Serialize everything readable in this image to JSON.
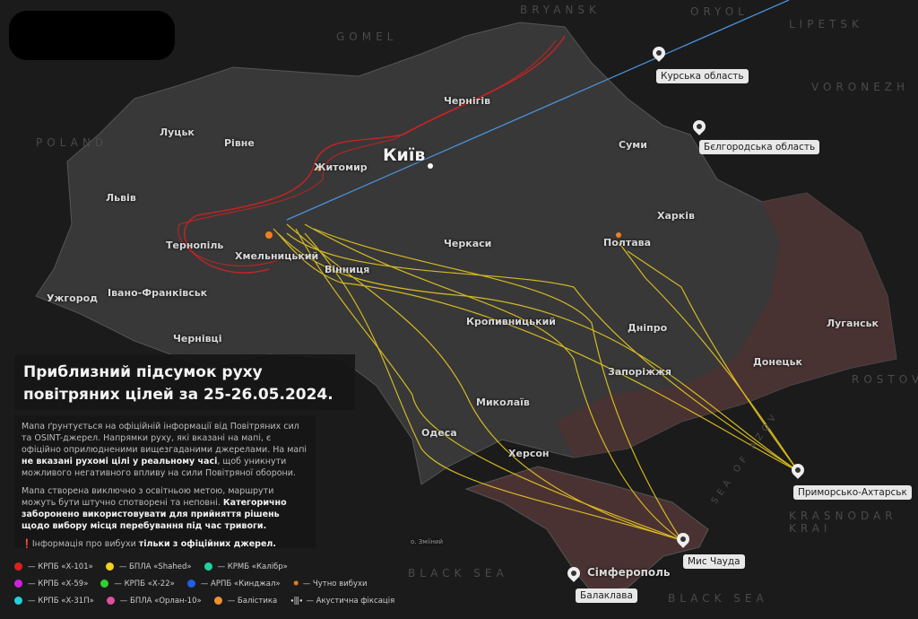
{
  "title": "Приблизний підсумок руху повітряних цілей за 25-26.05.2024.",
  "description": {
    "p1_normal_a": "Мапа ґрунтується на офіційній інформації від Повітряних сил та OSINT-джерел. Напрямки руху, які вказані на мапі, є офіційно оприлюдненими вищезгаданими джерелами. На мапі ",
    "p1_bold": "не вказані рухомі цілі у реальному часі",
    "p1_normal_b": ", щоб уникнути можливого негативного впливу на сили Повітряної оборони.",
    "p2_normal": "Мапа створена виключно з освітньою метою, маршрути можуть бути штучно спотворені та неповні. ",
    "p2_bold": "Категорично заборонено використовувати для прийняття рішень щодо вибору місця перебування під час тривоги.",
    "p3_mark": "❗",
    "p3_normal": "Інформація про вибухи ",
    "p3_bold": "тільки з офіційних джерел."
  },
  "legend": [
    {
      "label": "— КРПБ «Х-101»",
      "color": "#e02020"
    },
    {
      "label": "— БПЛА «Shahed»",
      "color": "#f0d020"
    },
    {
      "label": "— КРМБ «Калібр»",
      "color": "#20d0a0"
    },
    {
      "label": "— КРПБ «Х-59»",
      "color": "#d020e0"
    },
    {
      "label": "— КРПБ «Х-22»",
      "color": "#30d030"
    },
    {
      "label": "— АРПБ «Кинджал»",
      "color": "#2060e0"
    },
    {
      "label": "— Чутно вибухи",
      "icon": "explosion-icon"
    },
    {
      "label": "— КРПБ «Х-31П»",
      "color": "#20d0e0"
    },
    {
      "label": "— БПЛА «Орлан-10»",
      "color": "#e050a0"
    },
    {
      "label": "— Балістика",
      "color": "#f09030"
    },
    {
      "label": "— Акустична фіксація",
      "icon": "acoustic-icon"
    }
  ],
  "cities": {
    "kyiv": "Київ",
    "chernihiv": "Чернігів",
    "zhytomyr": "Житомир",
    "lutsk": "Луцьк",
    "rivne": "Рівне",
    "lviv": "Львів",
    "ternopil": "Тернопіль",
    "khmelnytskyi": "Хмельницький",
    "vinnytsia": "Вінниця",
    "uzhhorod": "Ужгород",
    "ivano": "Івано-Франківськ",
    "chernivtsi": "Чернівці",
    "cherkasy": "Черкаси",
    "sumy": "Суми",
    "kharkiv": "Харків",
    "poltava": "Полтава",
    "kropyvnytskyi": "Кропивницький",
    "dnipro": "Дніпро",
    "zaporizhzhia": "Запоріжжя",
    "luhansk": "Луганськ",
    "donetsk": "Донецьк",
    "mykolaiv": "Миколаїв",
    "odesa": "Одеса",
    "kherson": "Херсон",
    "simferopol": "Сімферополь",
    "zmiinyi": "о. Зміїний"
  },
  "regions": {
    "poland": "POLAND",
    "gomel": "GOMEL",
    "bryansk": "BRYANSK",
    "oryol": "ORYOL",
    "lipetsk": "LIPETSK",
    "voronezh": "VORONEZH",
    "rostov": "ROSTOV",
    "krasnodar": "KRASNODAR KRAI",
    "black_sea_1": "BLACK SEA",
    "black_sea_2": "BLACK SEA",
    "azov": "SEA OF AZOV"
  },
  "launch_points": {
    "kursk": "Курська область",
    "belgorod": "Бєлгородська область",
    "prymorsko": "Приморсько-Ахтарськ",
    "chauda": "Мис Чауда",
    "balaklava": "Балаклава"
  },
  "colors": {
    "background": "#1b1b1b",
    "territory": "#3a3a3a",
    "occupied": "#4a3232",
    "shahed": "#f0d020",
    "x101": "#e02020",
    "kinzhal": "#4a90d8"
  }
}
